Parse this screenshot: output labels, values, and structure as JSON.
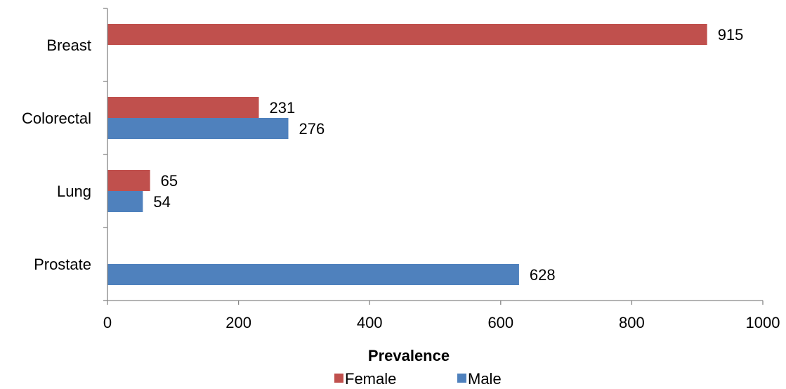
{
  "chart_data": {
    "type": "bar",
    "orientation": "horizontal",
    "categories": [
      "Breast",
      "Colorectal",
      "Lung",
      "Prostate"
    ],
    "series": [
      {
        "name": "Female",
        "color": "#C0504D",
        "values": [
          915,
          231,
          65,
          null
        ]
      },
      {
        "name": "Male",
        "color": "#4F81BD",
        "values": [
          null,
          276,
          54,
          628
        ]
      }
    ],
    "xlabel": "Prevalence",
    "ylabel": "",
    "xlim": [
      0,
      1000
    ],
    "x_ticks": [
      0,
      200,
      400,
      600,
      800,
      1000
    ],
    "x_tick_labels": [
      "0",
      "200",
      "400",
      "600",
      "800",
      "1000"
    ],
    "grid": false,
    "legend_position": "bottom"
  }
}
